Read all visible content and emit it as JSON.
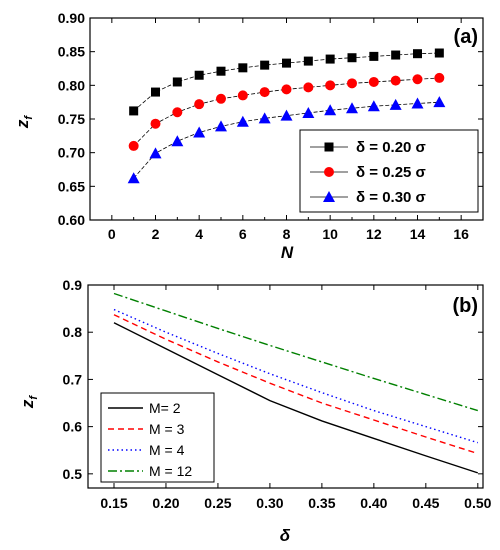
{
  "chart_data": [
    {
      "panel": "(a)",
      "type": "line",
      "xlabel": "N",
      "ylabel_main": "z",
      "ylabel_sub": "f",
      "xlim": [
        -1,
        17
      ],
      "ylim": [
        0.6,
        0.9
      ],
      "xticks": [
        "0",
        "2",
        "4",
        "6",
        "8",
        "10",
        "12",
        "14",
        "16"
      ],
      "yticks": [
        "0.60",
        "0.65",
        "0.70",
        "0.75",
        "0.80",
        "0.85",
        "0.90"
      ],
      "legend_position": "bottom-right",
      "x": [
        1,
        2,
        3,
        4,
        5,
        6,
        7,
        8,
        9,
        10,
        11,
        12,
        13,
        14,
        15
      ],
      "series": [
        {
          "name": "δ = 0.20 σ",
          "color": "#000000",
          "marker": "square",
          "values": [
            0.762,
            0.79,
            0.805,
            0.815,
            0.821,
            0.826,
            0.83,
            0.833,
            0.836,
            0.839,
            0.841,
            0.843,
            0.845,
            0.847,
            0.848
          ]
        },
        {
          "name": "δ = 0.25 σ",
          "color": "#ff0000",
          "marker": "circle",
          "values": [
            0.71,
            0.743,
            0.76,
            0.772,
            0.78,
            0.785,
            0.79,
            0.794,
            0.797,
            0.8,
            0.803,
            0.805,
            0.807,
            0.809,
            0.811
          ]
        },
        {
          "name": "δ = 0.30 σ",
          "color": "#0000ff",
          "marker": "triangle",
          "values": [
            0.662,
            0.699,
            0.717,
            0.73,
            0.739,
            0.746,
            0.751,
            0.755,
            0.759,
            0.763,
            0.766,
            0.769,
            0.771,
            0.773,
            0.775
          ]
        }
      ]
    },
    {
      "panel": "(b)",
      "type": "line",
      "xlabel": "δ",
      "ylabel_main": "z",
      "ylabel_sub": "f",
      "xlim": [
        0.125,
        0.505
      ],
      "ylim": [
        0.47,
        0.9
      ],
      "xticks": [
        "0.15",
        "0.20",
        "0.25",
        "0.30",
        "0.35",
        "0.40",
        "0.45",
        "0.50"
      ],
      "yticks": [
        "0.5",
        "0.6",
        "0.7",
        "0.8",
        "0.9"
      ],
      "legend_position": "bottom-left",
      "x": [
        0.15,
        0.2,
        0.25,
        0.3,
        0.35,
        0.4,
        0.45,
        0.5
      ],
      "series": [
        {
          "name": "M= 2",
          "color": "#000000",
          "dash": "",
          "values": [
            0.82,
            0.765,
            0.71,
            0.655,
            0.612,
            0.575,
            0.538,
            0.502
          ]
        },
        {
          "name": "M = 3",
          "color": "#ff0000",
          "dash": "6,4",
          "values": [
            0.837,
            0.785,
            0.737,
            0.692,
            0.65,
            0.614,
            0.578,
            0.543
          ]
        },
        {
          "name": "M = 4",
          "color": "#0000ff",
          "dash": "1.5,3",
          "values": [
            0.848,
            0.8,
            0.755,
            0.712,
            0.672,
            0.634,
            0.6,
            0.566
          ]
        },
        {
          "name": "M = 12",
          "color": "#008000",
          "dash": "9,3,2,3",
          "values": [
            0.882,
            0.845,
            0.808,
            0.772,
            0.737,
            0.702,
            0.668,
            0.634
          ]
        }
      ]
    }
  ]
}
